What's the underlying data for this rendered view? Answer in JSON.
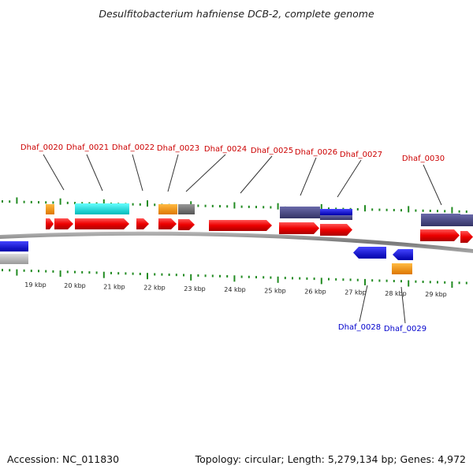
{
  "title": "Desulfitobacterium hafniense DCB-2, complete genome",
  "accession": "Accession: NC_011830",
  "summary": "Topology: circular; Length: 5,279,134 bp; Genes: 4,972",
  "scale_labels": [
    "19 kbp",
    "20 kbp",
    "21 kbp",
    "22 kbp",
    "23 kbp",
    "24 kbp",
    "25 kbp",
    "26 kbp",
    "27 kbp",
    "28 kbp",
    "29 kbp"
  ],
  "gene_labels_top": [
    "Dhaf_0020",
    "Dhaf_0021",
    "Dhaf_0022",
    "Dhaf_0023",
    "Dhaf_0024",
    "Dhaf_0025",
    "Dhaf_0026",
    "Dhaf_0027",
    "Dhaf_0030"
  ],
  "gene_labels_bottom": [
    "Dhaf_0028",
    "Dhaf_0029"
  ],
  "colors": {
    "cds": "#ee0000",
    "cyan": "#00dddd",
    "orange": "#ff9900",
    "gray": "#777777",
    "slate": "#4b4b8f",
    "blue": "#0000ee",
    "lightgray": "#bbbbbb",
    "tick": "#228B22",
    "label_top": "#cc0000",
    "label_bottom": "#0000cc"
  }
}
